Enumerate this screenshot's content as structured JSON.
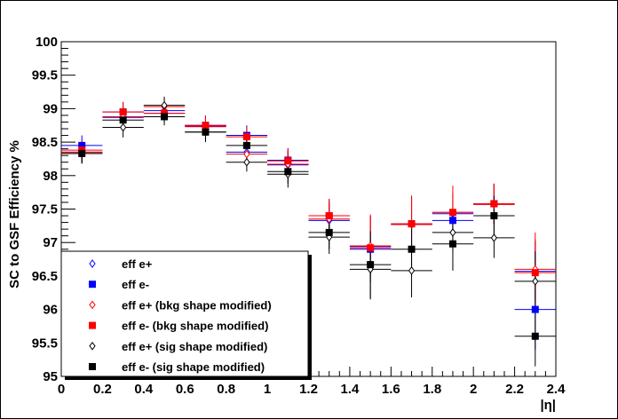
{
  "chart_data": {
    "type": "scatter",
    "xlabel": "|η|",
    "ylabel": "SC to GSF Efficiency %",
    "xlim": [
      0,
      2.4
    ],
    "ylim": [
      95,
      100
    ],
    "x_ticks": [
      "0",
      "0.2",
      "0.4",
      "0.6",
      "0.8",
      "1",
      "1.2",
      "1.4",
      "1.6",
      "1.8",
      "2",
      "2.2",
      "2.4"
    ],
    "y_ticks": [
      "95",
      "95.5",
      "96",
      "96.5",
      "97",
      "97.5",
      "98",
      "98.5",
      "99",
      "99.5",
      "100"
    ],
    "x_ticks_values": [
      0,
      0.2,
      0.4,
      0.6,
      0.8,
      1.0,
      1.2,
      1.4,
      1.6,
      1.8,
      2.0,
      2.2,
      2.4
    ],
    "y_ticks_values": [
      95,
      95.5,
      96,
      96.5,
      97,
      97.5,
      98,
      98.5,
      99,
      99.5,
      100
    ],
    "grid": false,
    "legend_position": "bottom-left",
    "x": [
      0.1,
      0.3,
      0.5,
      0.7,
      0.9,
      1.1,
      1.3,
      1.5,
      1.7,
      1.9,
      2.1,
      2.3
    ],
    "x_err": 0.1,
    "series": [
      {
        "name": "eff e+",
        "marker": "diamond-open",
        "color": "#0000ff",
        "values": [
          98.35,
          98.87,
          98.97,
          98.74,
          98.35,
          98.16,
          97.33,
          96.94,
          97.27,
          97.43,
          97.57,
          96.57
        ],
        "errors": [
          0.15,
          0.15,
          0.13,
          0.13,
          0.14,
          0.2,
          0.25,
          0.45,
          0.4,
          0.3,
          0.3,
          0.45
        ]
      },
      {
        "name": "eff e-",
        "marker": "square-filled",
        "color": "#0000ff",
        "values": [
          98.45,
          98.95,
          98.93,
          98.75,
          98.6,
          98.23,
          97.4,
          96.9,
          97.28,
          97.33,
          97.58,
          96.0
        ],
        "errors": [
          0.15,
          0.15,
          0.13,
          0.15,
          0.15,
          0.18,
          0.25,
          0.5,
          0.42,
          0.4,
          0.3,
          0.6
        ]
      },
      {
        "name": "eff e+ (bkg shape modified)",
        "marker": "diamond-open",
        "color": "#ff0000",
        "values": [
          98.35,
          98.88,
          99.03,
          98.73,
          98.32,
          98.17,
          97.35,
          96.95,
          97.27,
          97.45,
          97.57,
          96.6
        ],
        "errors": [
          0.15,
          0.15,
          0.13,
          0.13,
          0.14,
          0.2,
          0.25,
          0.45,
          0.4,
          0.3,
          0.3,
          0.45
        ]
      },
      {
        "name": "eff e- (bkg shape modified)",
        "marker": "square-filled",
        "color": "#ff0000",
        "values": [
          98.38,
          98.95,
          98.93,
          98.75,
          98.58,
          98.22,
          97.4,
          96.92,
          97.28,
          97.45,
          97.58,
          96.55
        ],
        "errors": [
          0.15,
          0.15,
          0.13,
          0.15,
          0.15,
          0.18,
          0.25,
          0.5,
          0.42,
          0.4,
          0.3,
          0.6
        ]
      },
      {
        "name": "eff e+ (sig shape modified)",
        "marker": "diamond-open",
        "color": "#000000",
        "values": [
          98.33,
          98.72,
          99.05,
          98.65,
          98.2,
          98.02,
          97.08,
          96.6,
          96.58,
          97.15,
          97.07,
          96.42
        ],
        "errors": [
          0.15,
          0.15,
          0.13,
          0.13,
          0.14,
          0.2,
          0.25,
          0.45,
          0.4,
          0.3,
          0.3,
          0.45
        ]
      },
      {
        "name": "eff e- (sig shape modified)",
        "marker": "square-filled",
        "color": "#000000",
        "values": [
          98.33,
          98.83,
          98.88,
          98.65,
          98.45,
          98.06,
          97.15,
          96.67,
          96.9,
          96.98,
          97.4,
          95.6
        ],
        "errors": [
          0.15,
          0.15,
          0.13,
          0.15,
          0.15,
          0.18,
          0.25,
          0.5,
          0.42,
          0.4,
          0.3,
          0.45
        ]
      }
    ]
  }
}
